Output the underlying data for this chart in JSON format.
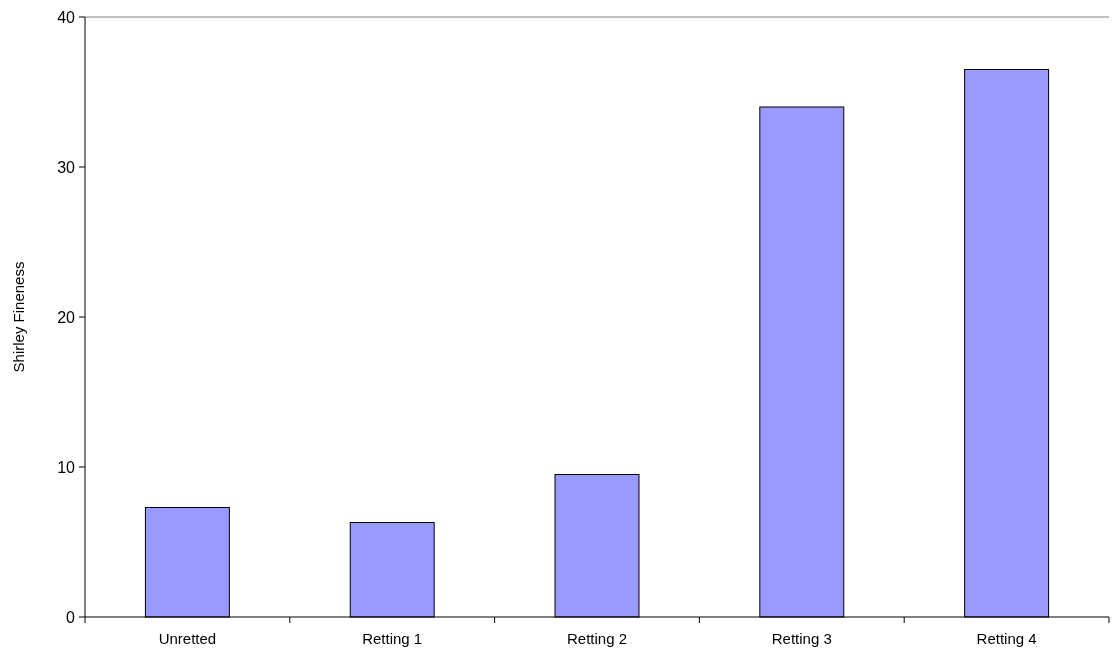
{
  "chart_data": {
    "type": "bar",
    "ylabel": "Shirley Fineness",
    "categories": [
      "Unretted",
      "Retting 1",
      "Retting 2",
      "Retting 3",
      "Retting 4"
    ],
    "values": [
      7.3,
      6.3,
      9.5,
      34,
      36.5
    ],
    "color": "#9999ff",
    "ylim": [
      0,
      40
    ],
    "yticks": [
      0,
      10,
      20,
      30,
      40
    ],
    "grid": false
  }
}
